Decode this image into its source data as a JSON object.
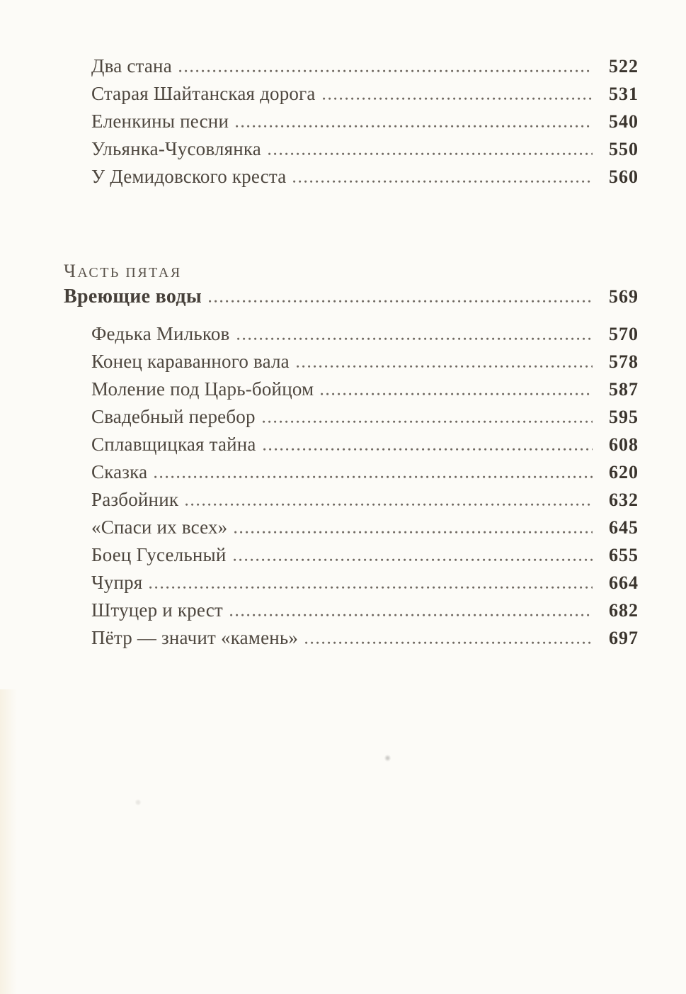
{
  "page": {
    "bg_color": "#fcfbf7",
    "text_color": "#4e473f",
    "page_number_color": "#3a342d",
    "leader_dot_color": "#6e675f"
  },
  "toc": {
    "top_entries": [
      {
        "title": "Два стана",
        "page": "522"
      },
      {
        "title": "Старая Шайтанская дорога",
        "page": "531"
      },
      {
        "title": "Еленкины песни",
        "page": "540"
      },
      {
        "title": "Ульянка-Чусовлянка",
        "page": "550"
      },
      {
        "title": "У Демидовского креста",
        "page": "560"
      }
    ],
    "part": {
      "label": "ЧАСТЬ ПЯТАЯ",
      "title": "Вреющие воды",
      "page": "569"
    },
    "part_entries": [
      {
        "title": "Федька Мильков",
        "page": "570"
      },
      {
        "title": "Конец караванного вала",
        "page": "578"
      },
      {
        "title": "Моление под Царь-бойцом",
        "page": "587"
      },
      {
        "title": "Свадебный перебор",
        "page": "595"
      },
      {
        "title": "Сплавщицкая тайна",
        "page": "608"
      },
      {
        "title": "Сказка",
        "page": "620"
      },
      {
        "title": "Разбойник",
        "page": "632"
      },
      {
        "title": "«Спаси их всех»",
        "page": "645"
      },
      {
        "title": "Боец Гусельный",
        "page": "655"
      },
      {
        "title": "Чупря",
        "page": "664"
      },
      {
        "title": "Штуцер и крест",
        "page": "682"
      },
      {
        "title": "Пётр — значит «камень»",
        "page": "697"
      }
    ]
  }
}
